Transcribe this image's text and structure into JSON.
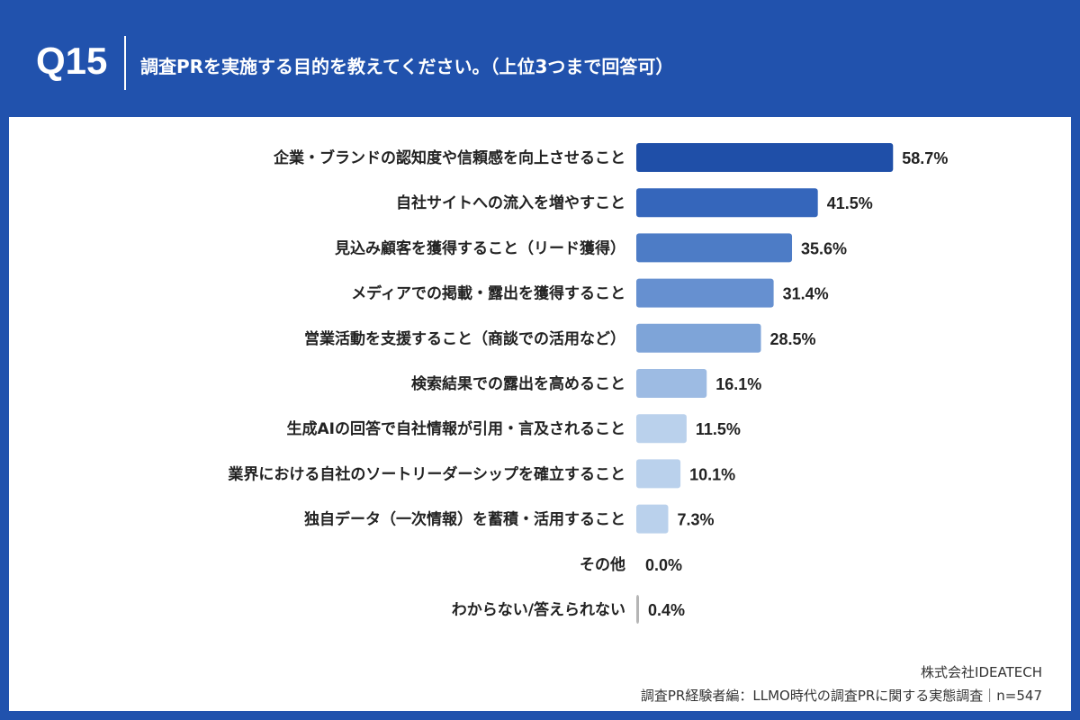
{
  "header": {
    "question_number": "Q15",
    "question": "調査PRを実施する目的を教えてください。（上位3つまで回答可）"
  },
  "chart_data": {
    "type": "bar",
    "orientation": "horizontal",
    "categories": [
      "企業・ブランドの認知度や信頼感を向上させること",
      "自社サイトへの流入を増やすこと",
      "見込み顧客を獲得すること（リード獲得）",
      "メディアでの掲載・露出を獲得すること",
      "営業活動を支援すること（商談での活用など）",
      "検索結果での露出を高めること",
      "生成AIの回答で自社情報が引用・言及されること",
      "業界における自社のソートリーダーシップを確立すること",
      "独自データ（一次情報）を蓄積・活用すること",
      "その他",
      "わからない/答えられない"
    ],
    "values": [
      58.7,
      41.5,
      35.6,
      31.4,
      28.5,
      16.1,
      11.5,
      10.1,
      7.3,
      0.0,
      0.4
    ],
    "value_labels": [
      "58.7%",
      "41.5%",
      "35.6%",
      "31.4%",
      "28.5%",
      "16.1%",
      "11.5%",
      "10.1%",
      "7.3%",
      "0.0%",
      "0.4%"
    ],
    "colors": [
      "#1f4fa8",
      "#3566bb",
      "#4d7cc6",
      "#6690d0",
      "#7ea4d8",
      "#9dbbe3",
      "#bad1ec",
      "#bad1ec",
      "#bad1ec",
      "#bad1ec",
      "#b5b5b5"
    ],
    "unit": "%"
  },
  "footer": {
    "company": "株式会社IDEATECH",
    "source": "調査PR経験者編：LLMO時代の調査PRに関する実態調査｜n=547"
  }
}
